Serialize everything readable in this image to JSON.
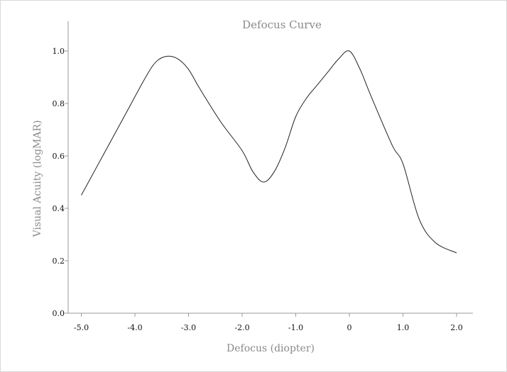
{
  "chart_data": {
    "type": "line",
    "title": "Defocus Curve",
    "xlabel": "Defocus (diopter)",
    "ylabel": "Visual Acuity (logMAR)",
    "xlim": [
      -5.3,
      2.3
    ],
    "ylim": [
      0.0,
      1.1
    ],
    "x_ticks": [
      {
        "value": -5.0,
        "label": "-5.0"
      },
      {
        "value": -4.0,
        "label": "-4.0"
      },
      {
        "value": -3.0,
        "label": "-3.0"
      },
      {
        "value": -2.0,
        "label": "-2.0"
      },
      {
        "value": -1.0,
        "label": "-1.0"
      },
      {
        "value": 0.0,
        "label": "0"
      },
      {
        "value": 1.0,
        "label": "1.0"
      },
      {
        "value": 2.0,
        "label": "2.0"
      }
    ],
    "y_ticks": [
      {
        "value": 0.0,
        "label": "0.0"
      },
      {
        "value": 0.2,
        "label": "0.2"
      },
      {
        "value": 0.4,
        "label": "0.4"
      },
      {
        "value": 0.6,
        "label": "0.6"
      },
      {
        "value": 0.8,
        "label": "0.8"
      },
      {
        "value": 1.0,
        "label": "1.0"
      }
    ],
    "grid": false,
    "legend": "none",
    "series": [
      {
        "color": "#222222",
        "x": [
          -5.0,
          -4.6,
          -4.2,
          -3.8,
          -3.6,
          -3.4,
          -3.2,
          -3.0,
          -2.8,
          -2.4,
          -2.0,
          -1.8,
          -1.6,
          -1.4,
          -1.2,
          -1.0,
          -0.8,
          -0.6,
          -0.4,
          -0.2,
          0.0,
          0.2,
          0.4,
          0.8,
          1.0,
          1.3,
          1.6,
          2.0
        ],
        "y": [
          0.45,
          0.6,
          0.75,
          0.9,
          0.96,
          0.98,
          0.97,
          0.93,
          0.86,
          0.73,
          0.62,
          0.54,
          0.5,
          0.54,
          0.63,
          0.75,
          0.82,
          0.87,
          0.92,
          0.97,
          1.0,
          0.93,
          0.83,
          0.64,
          0.57,
          0.36,
          0.27,
          0.23
        ]
      }
    ]
  }
}
